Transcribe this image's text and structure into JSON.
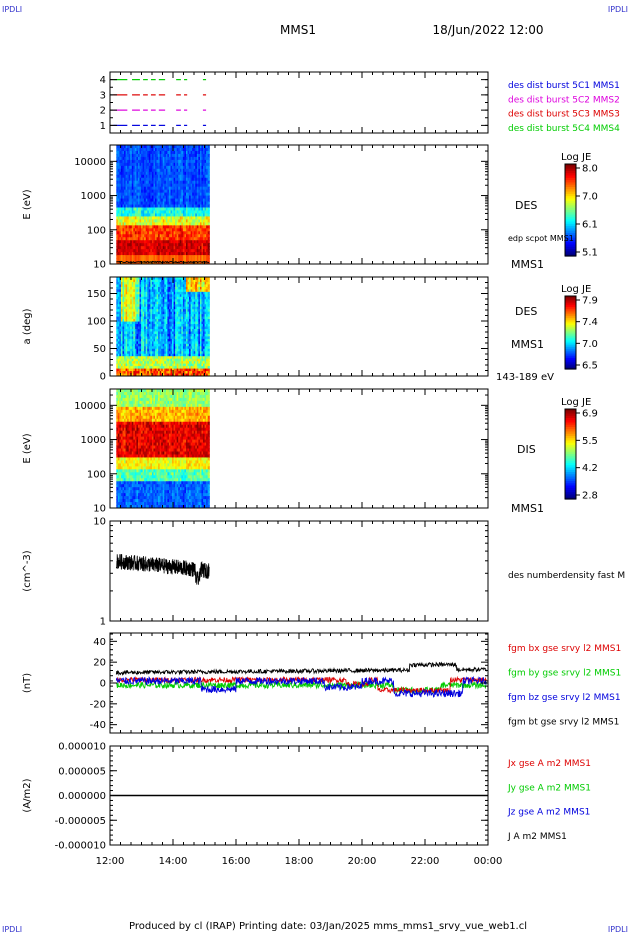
{
  "header": {
    "corner_left": "IPDLI",
    "corner_right": "IPDLI",
    "title": "MMS1",
    "date": "18/Jun/2022 12:00"
  },
  "footer": {
    "text": "Produced by cl (IRAP)   Printing date: 03/Jan/2025   mms_mms1_srvy_vue_web1.cl",
    "corner_left": "IPDLI",
    "corner_right": "IPDLI"
  },
  "colors": {
    "blue": "#0000dd",
    "magenta": "#dd00dd",
    "red": "#dd0000",
    "green": "#00cc00",
    "black": "#000000",
    "corner": "#3333cc"
  },
  "chart_data": [
    {
      "type": "scatter",
      "id": "burst",
      "ylim": [
        0.5,
        4.5
      ],
      "y_ticks": [
        "1",
        "2",
        "3",
        "4"
      ],
      "x_ticks": [],
      "series": [
        {
          "name": "des dist burst 5C1 MMS1",
          "color": "#0000dd",
          "y": 1
        },
        {
          "name": "des dist burst 5C2 MMS2",
          "color": "#dd00dd",
          "y": 2
        },
        {
          "name": "des dist burst 5C3 MMS3",
          "color": "#dd0000",
          "y": 3
        },
        {
          "name": "des dist burst 5C4 MMS4",
          "color": "#00cc00",
          "y": 4
        }
      ],
      "segments_hours": [
        [
          12.1,
          12.55
        ],
        [
          12.7,
          12.95
        ],
        [
          13.05,
          13.2
        ],
        [
          13.3,
          13.45
        ],
        [
          13.55,
          13.75
        ],
        [
          14.1,
          14.25
        ],
        [
          14.35,
          14.45
        ],
        [
          14.95,
          15.05
        ]
      ]
    },
    {
      "type": "heatmap",
      "id": "des_energy",
      "ylabel": "E (eV)",
      "y_ticks": [
        "10",
        "100",
        "1000",
        "10000"
      ],
      "ylim": [
        10,
        30000
      ],
      "log_y": true,
      "data_x_range_hours": [
        12.2,
        15.15
      ],
      "colorbar": {
        "label": "Log JE",
        "ticks": [
          "8.0",
          "7.0",
          "6.1",
          "5.1"
        ],
        "range": [
          5.1,
          8.0
        ]
      },
      "right_labels": [
        "DES",
        "edp scpot MMS1",
        "MMS1"
      ]
    },
    {
      "type": "heatmap",
      "id": "des_pitch",
      "ylabel": "a (deg)",
      "y_ticks": [
        "0",
        "50",
        "100",
        "150"
      ],
      "ylim": [
        0,
        180
      ],
      "data_x_range_hours": [
        12.2,
        15.15
      ],
      "colorbar": {
        "label": "Log JE",
        "ticks": [
          "7.9",
          "7.4",
          "7.0",
          "6.5"
        ],
        "range": [
          6.5,
          7.9
        ]
      },
      "right_labels": [
        "DES",
        "MMS1",
        "143-189 eV"
      ]
    },
    {
      "type": "heatmap",
      "id": "dis_energy",
      "ylabel": "E (eV)",
      "y_ticks": [
        "10",
        "100",
        "1000",
        "10000"
      ],
      "ylim": [
        10,
        30000
      ],
      "log_y": true,
      "data_x_range_hours": [
        12.2,
        15.15
      ],
      "colorbar": {
        "label": "Log JE",
        "ticks": [
          "6.9",
          "5.5",
          "4.2",
          "2.8"
        ],
        "range": [
          2.8,
          6.9
        ]
      },
      "right_labels": [
        "DIS",
        "MMS1"
      ]
    },
    {
      "type": "line",
      "id": "density",
      "ylabel": "(cm^-3)",
      "y_ticks": [
        "1",
        "10"
      ],
      "ylim": [
        1,
        10
      ],
      "log_y": true,
      "data_x_range_hours": [
        12.2,
        15.15
      ],
      "series": [
        {
          "name": "des numberdensity fast M",
          "color": "#000000",
          "mean_cm3": 3.6
        }
      ]
    },
    {
      "type": "line",
      "id": "fgm",
      "ylabel": "(nT)",
      "y_ticks": [
        "40",
        "20",
        "0",
        "-20",
        "-40"
      ],
      "ylim": [
        -48,
        48
      ],
      "data_x_range_hours": [
        12.2,
        23.95
      ],
      "series": [
        {
          "name": "fgm bx gse srvy l2 MMS1",
          "color": "#dd0000"
        },
        {
          "name": "fgm by gse srvy l2 MMS1",
          "color": "#00cc00"
        },
        {
          "name": "fgm bz gse srvy l2 MMS1",
          "color": "#0000dd"
        },
        {
          "name": "fgm bt gse srvy l2 MMS1",
          "color": "#000000"
        }
      ]
    },
    {
      "type": "line",
      "id": "current",
      "ylabel": "(A/m2)",
      "y_ticks": [
        "0.000010",
        "0.000005",
        "0.000000",
        "-0.000005",
        "-0.000010"
      ],
      "ylim": [
        -1e-05,
        1e-05
      ],
      "series": [
        {
          "name": "Jx gse A m2 MMS1",
          "color": "#dd0000"
        },
        {
          "name": "Jy gse A m2 MMS1",
          "color": "#00cc00"
        },
        {
          "name": "Jz gse A m2 MMS1",
          "color": "#0000dd"
        },
        {
          "name": "J A m2 MMS1",
          "color": "#000000"
        }
      ],
      "value_constant": 0
    }
  ],
  "x_axis": {
    "range_hours": [
      12,
      24
    ],
    "ticks": [
      "12:00",
      "14:00",
      "16:00",
      "18:00",
      "20:00",
      "22:00",
      "00:00"
    ]
  }
}
